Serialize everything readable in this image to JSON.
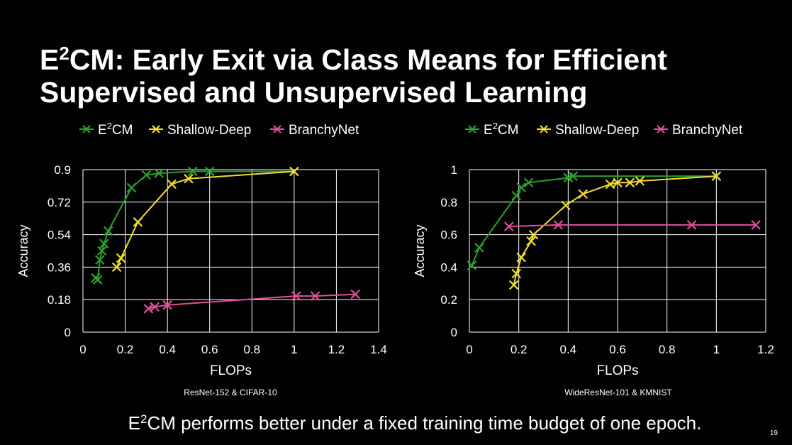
{
  "slide": {
    "title_prefix": "E",
    "title_sup": "2",
    "title_line1_rest": "CM: Early Exit via Class Means for Efficient",
    "title_line2": "Supervised and Unsupervised Learning",
    "footer_prefix": "E",
    "footer_sup": "2",
    "footer_rest": "CM performs better under a fixed training time budget of one epoch.",
    "page_number": "19"
  },
  "chart_data": [
    {
      "type": "line",
      "subtitle": "ResNet-152 & CIFAR-10",
      "xlabel": "FLOPs",
      "ylabel": "Accuracy",
      "xlim": [
        0,
        1.4
      ],
      "ylim": [
        0,
        0.9
      ],
      "xticks": [
        "0",
        "0.2",
        "0.4",
        "0.6",
        "0.8",
        "1",
        "1.2",
        "1.4"
      ],
      "yticks": [
        "0",
        "0.18",
        "0.36",
        "0.54",
        "0.72",
        "0.9"
      ],
      "grid": true,
      "legend_position": "top",
      "series": [
        {
          "name": "E²CM",
          "color": "#2ca02c",
          "marker": "x",
          "x": [
            0.06,
            0.07,
            0.08,
            0.09,
            0.1,
            0.12,
            0.23,
            0.3,
            0.36,
            0.52,
            0.6,
            1.0
          ],
          "y": [
            0.3,
            0.29,
            0.4,
            0.45,
            0.49,
            0.56,
            0.8,
            0.87,
            0.88,
            0.89,
            0.89,
            0.89
          ]
        },
        {
          "name": "Shallow-Deep",
          "color": "#f0dc32",
          "marker": "x",
          "x": [
            0.16,
            0.18,
            0.26,
            0.42,
            0.5,
            1.0
          ],
          "y": [
            0.36,
            0.41,
            0.61,
            0.82,
            0.85,
            0.89
          ]
        },
        {
          "name": "BranchyNet",
          "color": "#e0509a",
          "marker": "x",
          "x": [
            0.31,
            0.34,
            0.4,
            1.01,
            1.1,
            1.29
          ],
          "y": [
            0.13,
            0.14,
            0.15,
            0.2,
            0.2,
            0.21
          ]
        }
      ]
    },
    {
      "type": "line",
      "subtitle": "WideResNet-101 & KMNIST",
      "xlabel": "FLOPs",
      "ylabel": "Accuracy",
      "xlim": [
        0,
        1.2
      ],
      "ylim": [
        0,
        1
      ],
      "xticks": [
        "0",
        "0.2",
        "0.4",
        "0.6",
        "0.8",
        "1",
        "1.2"
      ],
      "yticks": [
        "0",
        "0.2",
        "0.4",
        "0.6",
        "0.8",
        "1"
      ],
      "grid": true,
      "legend_position": "top",
      "series": [
        {
          "name": "E²CM",
          "color": "#2ca02c",
          "marker": "x",
          "x": [
            0.01,
            0.04,
            0.19,
            0.21,
            0.24,
            0.4,
            0.42,
            1.0
          ],
          "y": [
            0.41,
            0.52,
            0.84,
            0.89,
            0.92,
            0.95,
            0.96,
            0.96
          ]
        },
        {
          "name": "Shallow-Deep",
          "color": "#f0dc32",
          "marker": "x",
          "x": [
            0.18,
            0.19,
            0.21,
            0.25,
            0.26,
            0.39,
            0.46,
            0.57,
            0.6,
            0.65,
            0.69,
            1.0
          ],
          "y": [
            0.29,
            0.36,
            0.46,
            0.56,
            0.6,
            0.78,
            0.85,
            0.91,
            0.92,
            0.92,
            0.93,
            0.96
          ]
        },
        {
          "name": "BranchyNet",
          "color": "#e0509a",
          "marker": "x",
          "x": [
            0.16,
            0.36,
            0.9,
            1.16
          ],
          "y": [
            0.65,
            0.66,
            0.66,
            0.66
          ]
        }
      ]
    }
  ]
}
